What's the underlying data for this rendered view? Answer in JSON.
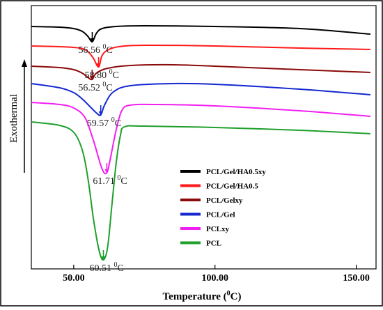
{
  "chart_data": {
    "type": "line",
    "title": "",
    "xlabel_main": "Temperature (",
    "xlabel_sup": "0",
    "xlabel_tail": "C)",
    "ylabel": "Exothermal",
    "xlim": [
      35,
      157
    ],
    "xticks": [
      50,
      100,
      150
    ],
    "xtick_labels": [
      "50.00",
      "100.00",
      "150.00"
    ],
    "yticks": "none",
    "grid": false,
    "legend_position": "lower-right",
    "series": [
      {
        "name": "PCL/Gel/HA0.5xy",
        "color": "#000000",
        "offset": 30,
        "baseline": [
          [
            35,
            0
          ],
          [
            45,
            -1
          ],
          [
            50,
            -3
          ],
          [
            53,
            -7
          ],
          [
            55,
            -14
          ],
          [
            56.56,
            -22
          ],
          [
            58,
            -10
          ],
          [
            60,
            -3
          ],
          [
            65,
            0
          ],
          [
            75,
            1
          ],
          [
            100,
            0
          ],
          [
            130,
            -3
          ],
          [
            155,
            -11
          ]
        ],
        "peak": {
          "x": 56.56,
          "label_main": "56.56 ",
          "label_sup": "0",
          "label_tail": "C"
        }
      },
      {
        "name": "PCL/Gel/HA0.5",
        "color": "#ff1a1a",
        "offset": 58,
        "baseline": [
          [
            35,
            0
          ],
          [
            45,
            -1
          ],
          [
            52,
            -3
          ],
          [
            55,
            -8
          ],
          [
            57,
            -18
          ],
          [
            58.8,
            -30
          ],
          [
            60,
            -14
          ],
          [
            62,
            -6
          ],
          [
            66,
            -1
          ],
          [
            75,
            1
          ],
          [
            100,
            0
          ],
          [
            130,
            -3
          ],
          [
            155,
            -5
          ]
        ],
        "peak": {
          "x": 58.8,
          "label_main": "58.80 ",
          "label_sup": "0",
          "label_tail": "C"
        }
      },
      {
        "name": "PCL/Gelxy",
        "color": "#8b0a0a",
        "offset": 87,
        "baseline": [
          [
            35,
            0
          ],
          [
            45,
            -2
          ],
          [
            50,
            -5
          ],
          [
            53,
            -10
          ],
          [
            55,
            -16
          ],
          [
            56.52,
            -19
          ],
          [
            58,
            -10
          ],
          [
            62,
            -3
          ],
          [
            70,
            1
          ],
          [
            85,
            2
          ],
          [
            100,
            0
          ],
          [
            130,
            -5
          ],
          [
            155,
            -9
          ]
        ],
        "peak": {
          "x": 56.52,
          "label_main": "56.52 ",
          "label_sup": "0",
          "label_tail": "C"
        }
      },
      {
        "name": "PCL/Gel",
        "color": "#1428d0",
        "offset": 112,
        "baseline": [
          [
            35,
            0
          ],
          [
            45,
            -6
          ],
          [
            50,
            -13
          ],
          [
            53,
            -22
          ],
          [
            56,
            -34
          ],
          [
            58,
            -42
          ],
          [
            59.57,
            -45
          ],
          [
            61,
            -30
          ],
          [
            64,
            -12
          ],
          [
            70,
            -3
          ],
          [
            85,
            0
          ],
          [
            100,
            -1
          ],
          [
            130,
            -8
          ],
          [
            155,
            -16
          ]
        ],
        "peak": {
          "x": 59.57,
          "label_main": "59.57 ",
          "label_sup": "0",
          "label_tail": "C"
        }
      },
      {
        "name": "PCLxy",
        "color": "#f21ff2",
        "offset": 139,
        "baseline": [
          [
            35,
            0
          ],
          [
            45,
            -3
          ],
          [
            50,
            -8
          ],
          [
            54,
            -22
          ],
          [
            57,
            -55
          ],
          [
            60,
            -95
          ],
          [
            61.71,
            -101
          ],
          [
            63,
            -80
          ],
          [
            65,
            -40
          ],
          [
            67,
            -12
          ],
          [
            70,
            -4
          ],
          [
            80,
            -3
          ],
          [
            100,
            -5
          ],
          [
            130,
            -12
          ],
          [
            155,
            -20
          ]
        ],
        "peak": {
          "x": 61.71,
          "label_main": "61.71 ",
          "label_sup": "0",
          "label_tail": "C"
        }
      },
      {
        "name": "PCL",
        "color": "#1f9f2c",
        "offset": 167,
        "baseline": [
          [
            35,
            0
          ],
          [
            45,
            -5
          ],
          [
            50,
            -15
          ],
          [
            53,
            -40
          ],
          [
            55,
            -80
          ],
          [
            57,
            -140
          ],
          [
            59,
            -185
          ],
          [
            60.51,
            -198
          ],
          [
            62,
            -180
          ],
          [
            63.5,
            -120
          ],
          [
            65,
            -60
          ],
          [
            66.5,
            -20
          ],
          [
            68,
            -7
          ],
          [
            75,
            -6
          ],
          [
            100,
            -8
          ],
          [
            130,
            -12
          ],
          [
            155,
            -17
          ]
        ],
        "peak": {
          "x": 60.51,
          "label_main": "60.51 ",
          "label_sup": "0",
          "label_tail": "C"
        }
      }
    ]
  }
}
